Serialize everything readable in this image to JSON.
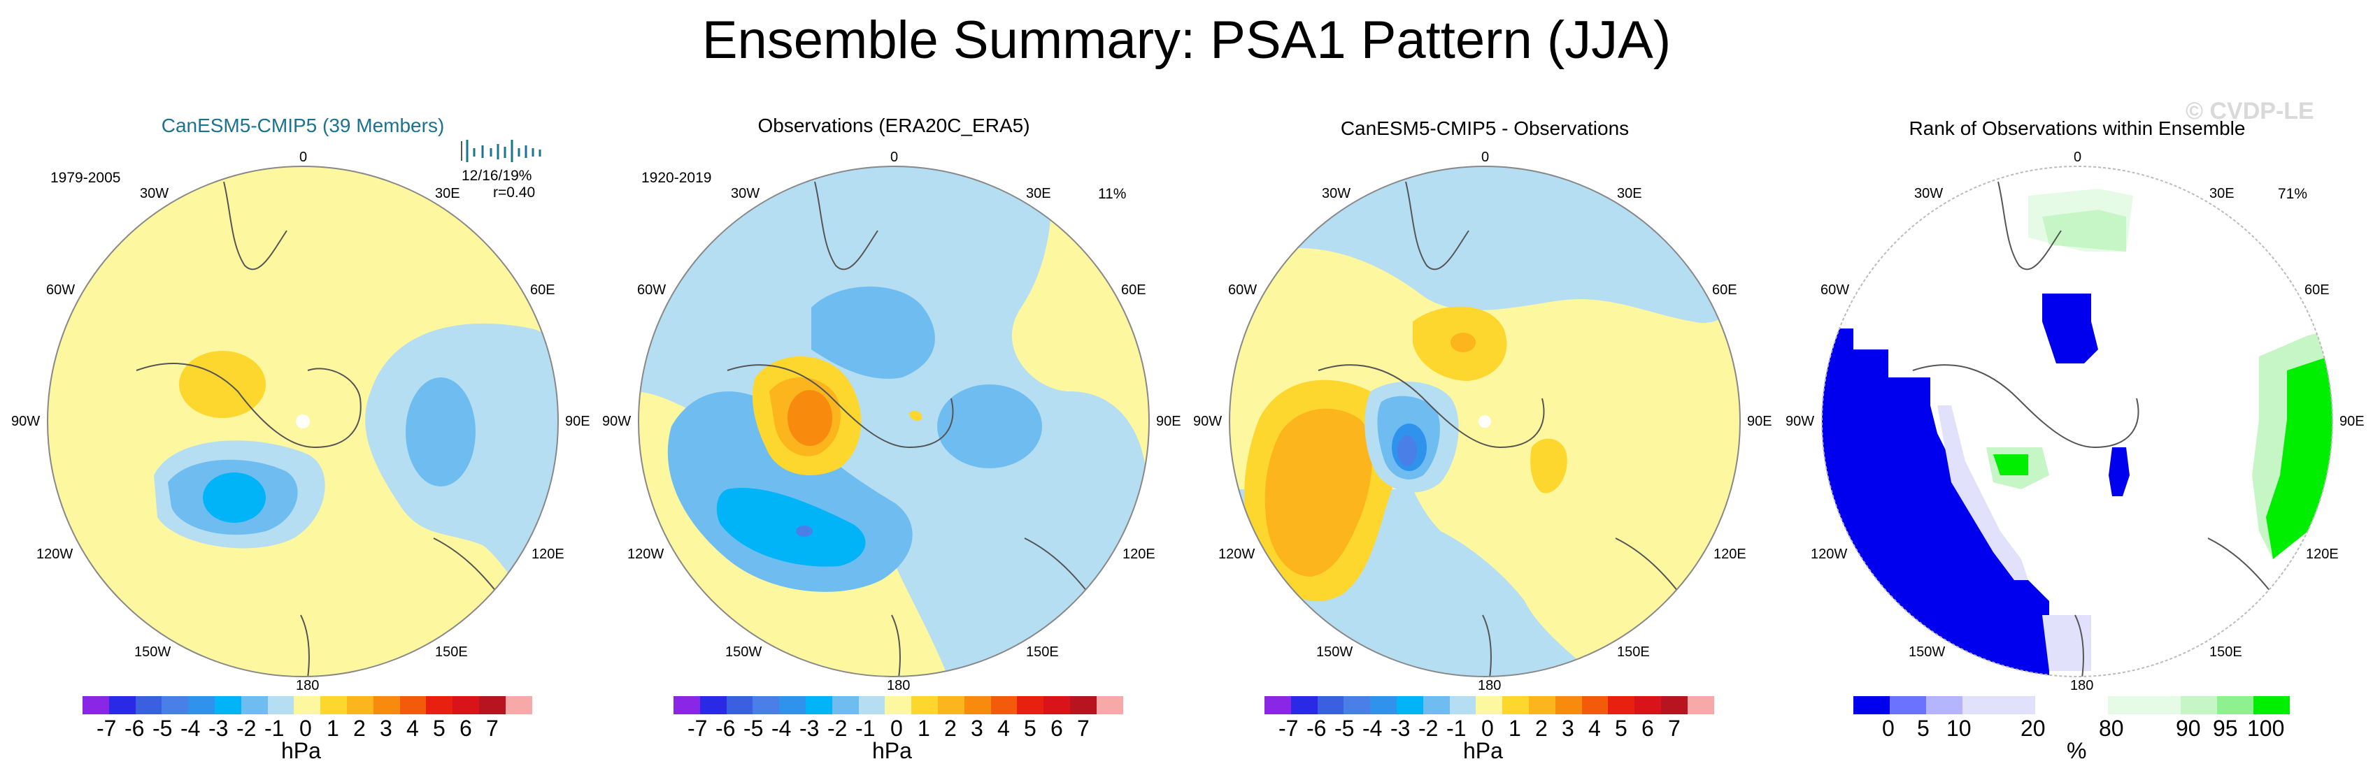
{
  "title": "Ensemble Summary: PSA1 Pattern (JJA)",
  "watermark": "© CVDP-LE",
  "colors": {
    "anom": [
      "#8a26e6",
      "#2a2ae6",
      "#3a5fe0",
      "#4b7fe8",
      "#2f93ed",
      "#00b4f7",
      "#6fbdf0",
      "#b5def2",
      "#fdf7a0",
      "#fdd72d",
      "#fcb51d",
      "#f88a0d",
      "#f35b0a",
      "#e8200f",
      "#d8141a",
      "#b81420",
      "#f7a8a8"
    ],
    "rank": [
      "#0000ee",
      "#6a72ff",
      "#b4b4ff",
      "#e1e1fb",
      "#ffffff",
      "#e6fbe6",
      "#c6f5c6",
      "#8ef08e",
      "#00ee00"
    ]
  },
  "panels": [
    {
      "title": "CanESM5-CMIP5 (39 Members)",
      "period": "1979-2005",
      "stats": "12/16/19%",
      "corr": "r=0.40",
      "percent": ""
    },
    {
      "title": "Observations (ERA20C_ERA5)",
      "period": "1920-2019",
      "percent": "11%"
    },
    {
      "title": "CanESM5-CMIP5 - Observations",
      "period": "",
      "percent": ""
    },
    {
      "title": "Rank of Observations within Ensemble",
      "period": "",
      "percent": "71%"
    }
  ],
  "lon_labels": {
    "top": "0",
    "bottom": "180",
    "l30": "30W",
    "r30": "30E",
    "l60": "60W",
    "r60": "60E",
    "l90": "90W",
    "r90": "90E",
    "l120": "120W",
    "r120": "120E",
    "l150": "150W",
    "r150": "150E"
  },
  "anom_colorbar": {
    "ticks": [
      "-7",
      "-6",
      "-5",
      "-4",
      "-3",
      "-2",
      "-1",
      "0",
      "1",
      "2",
      "3",
      "4",
      "5",
      "6",
      "7"
    ],
    "units": "hPa"
  },
  "rank_colorbar": {
    "ticks": [
      "0",
      "5",
      "10",
      "20",
      "80",
      "90",
      "95",
      "100"
    ],
    "units": "%"
  }
}
